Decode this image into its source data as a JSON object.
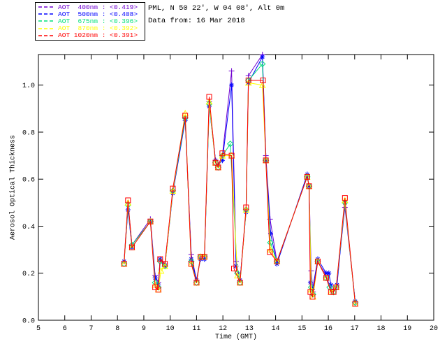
{
  "header": {
    "title": "PML, N 50 22', W 04 08', Alt 0m",
    "subtitle": "Data from: 16 Mar 2018"
  },
  "legend": {
    "entries": [
      {
        "label": "AOT  400nm : <0.419>",
        "color": "#7000D0",
        "marker": "plus"
      },
      {
        "label": "AOT  500nm : <0.408>",
        "color": "#0000FF",
        "marker": "asterisk"
      },
      {
        "label": "AOT  675nm : <0.396>",
        "color": "#00E07A",
        "marker": "diamond"
      },
      {
        "label": "AOT  870nm : <0.392>",
        "color": "#FFFF00",
        "marker": "triangle"
      },
      {
        "label": "AOT 1020nm : <0.391>",
        "color": "#FF0000",
        "marker": "square"
      }
    ]
  },
  "chart_data": {
    "type": "line",
    "title": "PML, N 50 22', W 04 08', Alt 0m",
    "subtitle": "Data from: 16 Mar 2018",
    "xlabel": "Time (GMT)",
    "ylabel": "Aerosol Optical Thickness",
    "xlim": [
      5,
      20
    ],
    "ylim": [
      0,
      1.13
    ],
    "xticks": [
      "5",
      "6",
      "7",
      "8",
      "9",
      "10",
      "11",
      "12",
      "13",
      "14",
      "15",
      "16",
      "17",
      "18",
      "19",
      "20"
    ],
    "yticks": [
      "0.0",
      "0.2",
      "0.4",
      "0.6",
      "0.8",
      "1.0"
    ],
    "grid": false,
    "legend_position": "top-left",
    "axis_color": "#000000",
    "series": [
      {
        "name": "AOT 400nm",
        "mean_label": "<0.419>",
        "color": "#7000D0",
        "marker": "plus",
        "points": [
          [
            8.25,
            0.25
          ],
          [
            8.4,
            0.5
          ],
          [
            8.55,
            0.32
          ],
          [
            9.25,
            0.43
          ],
          [
            9.43,
            0.19
          ],
          [
            9.55,
            0.16
          ],
          [
            9.62,
            0.26
          ],
          [
            9.8,
            0.24
          ],
          [
            10.1,
            0.55
          ],
          [
            10.57,
            0.86
          ],
          [
            10.8,
            0.28
          ],
          [
            11.0,
            0.17
          ],
          [
            11.15,
            0.27
          ],
          [
            11.3,
            0.27
          ],
          [
            11.48,
            0.93
          ],
          [
            11.72,
            0.68
          ],
          [
            11.82,
            0.66
          ],
          [
            11.98,
            0.7
          ],
          [
            12.33,
            1.06
          ],
          [
            12.5,
            0.25
          ],
          [
            12.65,
            0.17
          ],
          [
            12.88,
            0.47
          ],
          [
            12.97,
            1.04
          ],
          [
            13.5,
            1.13
          ],
          [
            13.63,
            0.7
          ],
          [
            13.79,
            0.43
          ],
          [
            14.05,
            0.25
          ],
          [
            15.2,
            0.61
          ],
          [
            15.27,
            0.57
          ],
          [
            15.35,
            0.21
          ],
          [
            15.42,
            0.12
          ],
          [
            15.6,
            0.25
          ],
          [
            15.92,
            0.19
          ],
          [
            16.1,
            0.13
          ],
          [
            16.3,
            0.14
          ],
          [
            16.63,
            0.48
          ],
          [
            17.02,
            0.08
          ]
        ]
      },
      {
        "name": "AOT 500nm",
        "mean_label": "<0.408>",
        "color": "#0000FF",
        "marker": "asterisk",
        "points": [
          [
            8.25,
            0.25
          ],
          [
            8.4,
            0.47
          ],
          [
            8.55,
            0.31
          ],
          [
            9.25,
            0.42
          ],
          [
            9.43,
            0.18
          ],
          [
            9.55,
            0.15
          ],
          [
            9.62,
            0.26
          ],
          [
            9.8,
            0.23
          ],
          [
            10.1,
            0.54
          ],
          [
            10.57,
            0.85
          ],
          [
            10.8,
            0.26
          ],
          [
            11.0,
            0.17
          ],
          [
            11.15,
            0.26
          ],
          [
            11.3,
            0.26
          ],
          [
            11.48,
            0.91
          ],
          [
            11.72,
            0.68
          ],
          [
            11.82,
            0.66
          ],
          [
            11.98,
            0.68
          ],
          [
            12.33,
            1.0
          ],
          [
            12.5,
            0.23
          ],
          [
            12.65,
            0.17
          ],
          [
            12.88,
            0.46
          ],
          [
            12.97,
            1.01
          ],
          [
            13.5,
            1.12
          ],
          [
            13.63,
            0.68
          ],
          [
            13.81,
            0.37
          ],
          [
            14.05,
            0.24
          ],
          [
            15.2,
            0.62
          ],
          [
            15.27,
            0.57
          ],
          [
            15.32,
            0.16
          ],
          [
            15.4,
            0.13
          ],
          [
            15.6,
            0.26
          ],
          [
            15.92,
            0.2
          ],
          [
            16.02,
            0.2
          ],
          [
            16.1,
            0.15
          ],
          [
            16.33,
            0.15
          ],
          [
            16.63,
            0.5
          ],
          [
            17.02,
            0.08
          ]
        ]
      },
      {
        "name": "AOT 675nm",
        "mean_label": "<0.396>",
        "color": "#00E07A",
        "marker": "diamond",
        "points": [
          [
            8.25,
            0.24
          ],
          [
            8.4,
            0.49
          ],
          [
            8.55,
            0.32
          ],
          [
            9.25,
            0.42
          ],
          [
            9.43,
            0.16
          ],
          [
            9.55,
            0.14
          ],
          [
            9.62,
            0.25
          ],
          [
            9.8,
            0.23
          ],
          [
            10.1,
            0.55
          ],
          [
            10.57,
            0.86
          ],
          [
            10.8,
            0.25
          ],
          [
            11.0,
            0.16
          ],
          [
            11.15,
            0.27
          ],
          [
            11.3,
            0.27
          ],
          [
            11.48,
            0.92
          ],
          [
            11.72,
            0.67
          ],
          [
            11.82,
            0.65
          ],
          [
            11.98,
            0.7
          ],
          [
            12.28,
            0.75
          ],
          [
            12.55,
            0.2
          ],
          [
            12.65,
            0.16
          ],
          [
            12.88,
            0.47
          ],
          [
            12.97,
            1.02
          ],
          [
            13.5,
            1.09
          ],
          [
            13.63,
            0.68
          ],
          [
            13.8,
            0.33
          ],
          [
            14.05,
            0.25
          ],
          [
            15.2,
            0.61
          ],
          [
            15.27,
            0.57
          ],
          [
            15.35,
            0.14
          ],
          [
            15.42,
            0.11
          ],
          [
            15.6,
            0.25
          ],
          [
            15.92,
            0.18
          ],
          [
            16.05,
            0.14
          ],
          [
            16.2,
            0.12
          ],
          [
            16.3,
            0.14
          ],
          [
            16.63,
            0.5
          ],
          [
            17.02,
            0.075
          ]
        ]
      },
      {
        "name": "AOT 870nm",
        "mean_label": "<0.392>",
        "color": "#FFFF00",
        "marker": "triangle",
        "points": [
          [
            8.25,
            0.24
          ],
          [
            8.4,
            0.5
          ],
          [
            8.55,
            0.31
          ],
          [
            9.25,
            0.42
          ],
          [
            9.43,
            0.15
          ],
          [
            9.55,
            0.13
          ],
          [
            9.65,
            0.21
          ],
          [
            9.8,
            0.23
          ],
          [
            10.1,
            0.55
          ],
          [
            10.57,
            0.88
          ],
          [
            10.8,
            0.24
          ],
          [
            11.0,
            0.16
          ],
          [
            11.15,
            0.27
          ],
          [
            11.3,
            0.27
          ],
          [
            11.48,
            0.93
          ],
          [
            11.72,
            0.67
          ],
          [
            11.82,
            0.65
          ],
          [
            11.98,
            0.7
          ],
          [
            12.33,
            0.7
          ],
          [
            12.55,
            0.19
          ],
          [
            12.65,
            0.16
          ],
          [
            12.88,
            0.47
          ],
          [
            12.97,
            1.01
          ],
          [
            13.5,
            1.0
          ],
          [
            13.63,
            0.68
          ],
          [
            13.8,
            0.3
          ],
          [
            14.05,
            0.25
          ],
          [
            15.2,
            0.61
          ],
          [
            15.27,
            0.57
          ],
          [
            15.35,
            0.13
          ],
          [
            15.42,
            0.1
          ],
          [
            15.6,
            0.25
          ],
          [
            15.92,
            0.18
          ],
          [
            16.1,
            0.12
          ],
          [
            16.3,
            0.14
          ],
          [
            16.63,
            0.51
          ],
          [
            17.02,
            0.07
          ]
        ]
      },
      {
        "name": "AOT 1020nm",
        "mean_label": "<0.391>",
        "color": "#FF0000",
        "marker": "square",
        "points": [
          [
            8.25,
            0.24
          ],
          [
            8.4,
            0.51
          ],
          [
            8.55,
            0.31
          ],
          [
            9.25,
            0.42
          ],
          [
            9.43,
            0.14
          ],
          [
            9.55,
            0.13
          ],
          [
            9.62,
            0.26
          ],
          [
            9.8,
            0.24
          ],
          [
            10.1,
            0.56
          ],
          [
            10.57,
            0.87
          ],
          [
            10.8,
            0.24
          ],
          [
            11.0,
            0.16
          ],
          [
            11.15,
            0.27
          ],
          [
            11.3,
            0.27
          ],
          [
            11.48,
            0.95
          ],
          [
            11.72,
            0.67
          ],
          [
            11.82,
            0.65
          ],
          [
            11.98,
            0.71
          ],
          [
            12.33,
            0.7
          ],
          [
            12.42,
            0.22
          ],
          [
            12.65,
            0.16
          ],
          [
            12.88,
            0.48
          ],
          [
            12.97,
            1.02
          ],
          [
            13.52,
            1.02
          ],
          [
            13.63,
            0.68
          ],
          [
            13.78,
            0.29
          ],
          [
            14.05,
            0.25
          ],
          [
            15.2,
            0.61
          ],
          [
            15.27,
            0.57
          ],
          [
            15.32,
            0.12
          ],
          [
            15.4,
            0.1
          ],
          [
            15.6,
            0.25
          ],
          [
            15.92,
            0.18
          ],
          [
            16.1,
            0.12
          ],
          [
            16.2,
            0.12
          ],
          [
            16.3,
            0.14
          ],
          [
            16.63,
            0.52
          ],
          [
            17.02,
            0.07
          ]
        ]
      }
    ]
  }
}
